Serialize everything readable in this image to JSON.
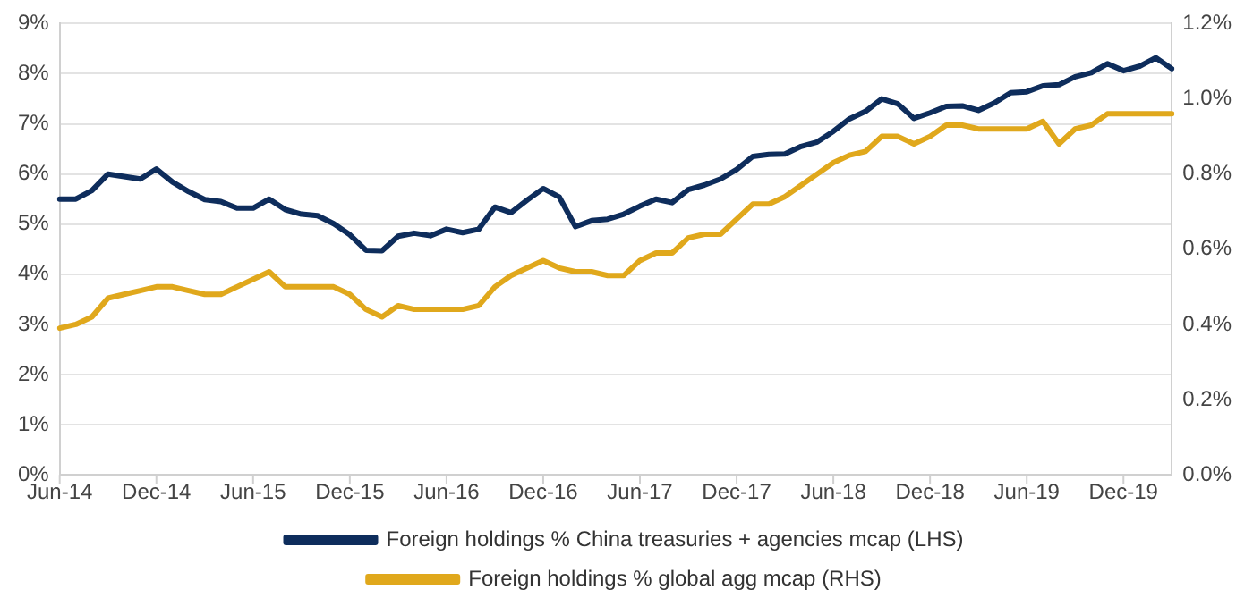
{
  "chart_data": {
    "type": "line",
    "categories": [
      "Jun-14",
      null,
      null,
      null,
      null,
      null,
      "Dec-14",
      null,
      null,
      null,
      null,
      null,
      "Jun-15",
      null,
      null,
      null,
      null,
      null,
      "Dec-15",
      null,
      null,
      null,
      null,
      null,
      "Jun-16",
      null,
      null,
      null,
      null,
      null,
      "Dec-16",
      null,
      null,
      null,
      null,
      null,
      "Jun-17",
      null,
      null,
      null,
      null,
      null,
      "Dec-17",
      null,
      null,
      null,
      null,
      null,
      "Jun-18",
      null,
      null,
      null,
      null,
      null,
      "Dec-18",
      null,
      null,
      null,
      null,
      null,
      "Jun-19",
      null,
      null,
      null,
      null,
      null,
      "Dec-19",
      null,
      null,
      null
    ],
    "series": [
      {
        "name": "Foreign holdings % China treasuries + agencies mcap (LHS)",
        "color": "#0e2d5c",
        "values": [
          5.5,
          5.5,
          5.67,
          6.0,
          5.95,
          5.9,
          6.1,
          5.84,
          5.65,
          5.49,
          5.45,
          5.32,
          5.32,
          5.5,
          5.29,
          5.2,
          5.17,
          5.01,
          4.79,
          4.48,
          4.47,
          4.76,
          4.82,
          4.77,
          4.9,
          4.83,
          4.9,
          5.34,
          5.23,
          5.48,
          5.71,
          5.54,
          4.95,
          5.07,
          5.1,
          5.2,
          5.36,
          5.5,
          5.43,
          5.69,
          5.78,
          5.9,
          6.09,
          6.35,
          6.39,
          6.4,
          6.55,
          6.64,
          6.85,
          7.1,
          7.25,
          7.5,
          7.4,
          7.11,
          7.22,
          7.35,
          7.36,
          7.27,
          7.42,
          7.62,
          7.64,
          7.76,
          7.78,
          7.94,
          8.02,
          8.2,
          8.06,
          8.15,
          8.32,
          8.1
        ]
      },
      {
        "name": "Foreign holdings % global agg mcap (RHS)",
        "color": "#e0a81c",
        "axis": "y2",
        "values": [
          0.39,
          0.4,
          0.42,
          0.47,
          0.48,
          0.49,
          0.5,
          0.5,
          0.49,
          0.48,
          0.48,
          0.5,
          0.52,
          0.54,
          0.5,
          0.5,
          0.5,
          0.5,
          0.48,
          0.44,
          0.42,
          0.45,
          0.44,
          0.44,
          0.44,
          0.44,
          0.45,
          0.5,
          0.53,
          0.55,
          0.57,
          0.55,
          0.54,
          0.54,
          0.53,
          0.53,
          0.57,
          0.59,
          0.59,
          0.63,
          0.64,
          0.64,
          0.68,
          0.72,
          0.72,
          0.74,
          0.77,
          0.8,
          0.83,
          0.85,
          0.86,
          0.9,
          0.9,
          0.88,
          0.9,
          0.93,
          0.93,
          0.92,
          0.92,
          0.92,
          0.92,
          0.94,
          0.88,
          0.92,
          0.93,
          0.96,
          0.96,
          0.96,
          0.96,
          0.96
        ]
      }
    ],
    "ylim": [
      0,
      9
    ],
    "yticks": [
      {
        "value": 0,
        "label": "0%"
      },
      {
        "value": 1,
        "label": "1%"
      },
      {
        "value": 2,
        "label": "2%"
      },
      {
        "value": 3,
        "label": "3%"
      },
      {
        "value": 4,
        "label": "4%"
      },
      {
        "value": 5,
        "label": "5%"
      },
      {
        "value": 6,
        "label": "6%"
      },
      {
        "value": 7,
        "label": "7%"
      },
      {
        "value": 8,
        "label": "8%"
      },
      {
        "value": 9,
        "label": "9%"
      }
    ],
    "y2lim": [
      0,
      1.2
    ],
    "y2ticks": [
      {
        "value": 0,
        "label": "0.0%"
      },
      {
        "value": 0.2,
        "label": "0.2%"
      },
      {
        "value": 0.4,
        "label": "0.4%"
      },
      {
        "value": 0.6,
        "label": "0.6%"
      },
      {
        "value": 0.8,
        "label": "0.8%"
      },
      {
        "value": 1.0,
        "label": "1.0%"
      },
      {
        "value": 1.2,
        "label": "1.2%"
      }
    ],
    "grid": "y",
    "legend": "bottom",
    "marker": "none",
    "line_style": "solid"
  }
}
